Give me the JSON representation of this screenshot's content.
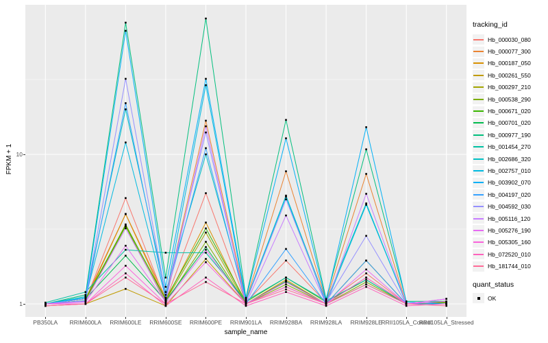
{
  "axis": {
    "y_label": "FPKM + 1",
    "x_label": "sample_name",
    "y_tick_labels": [
      "10",
      "1"
    ]
  },
  "legend": {
    "tracking_title": "tracking_id",
    "quant_title": "quant_status",
    "quant_ok_label": "OK",
    "quant_marker_color": "#000000"
  },
  "style": {
    "panel_bg": "#EBEBEB",
    "grid_color": "#FFFFFF",
    "tick_color": "#333333",
    "tick_text_color": "#4D4D4D",
    "point_color": "#000000"
  },
  "chart_data": {
    "type": "line",
    "title": "",
    "xlabel": "sample_name",
    "ylabel": "FPKM + 1",
    "scale_y": "log10",
    "ylim": [
      0.82,
      99
    ],
    "y_major_ticks": [
      1,
      10
    ],
    "y_minor_gridlines": [
      3.1623,
      31.623
    ],
    "grid": true,
    "legend_title": "tracking_id",
    "legend_position": "right",
    "point_marker": "filled-square",
    "quant_status": {
      "title": "quant_status",
      "value": "OK"
    },
    "categories": [
      "PB350LA",
      "RRIM600LA",
      "RRIM600LE",
      "RRIM600SE",
      "RRIM600PE",
      "RRIM901LA",
      "RRIM928BA",
      "RRIM928LA",
      "RRIM928LE",
      "RRII105LA_Control",
      "RRII105LA_Stressed"
    ],
    "series": [
      {
        "name": "Hb_000030_080",
        "color": "#F8766D",
        "values": [
          1.0,
          1.05,
          5.1,
          1.05,
          5.5,
          1.02,
          1.95,
          1.02,
          1.6,
          1.0,
          1.02
        ]
      },
      {
        "name": "Hb_000077_300",
        "color": "#EA8331",
        "values": [
          1.0,
          1.08,
          4.0,
          1.1,
          16.8,
          1.05,
          7.7,
          1.05,
          7.4,
          1.0,
          1.0
        ]
      },
      {
        "name": "Hb_000187_050",
        "color": "#D89000",
        "values": [
          1.0,
          1.05,
          3.98,
          1.05,
          3.5,
          1.0,
          1.45,
          1.0,
          1.95,
          1.0,
          1.03
        ]
      },
      {
        "name": "Hb_000261_550",
        "color": "#C09B00",
        "values": [
          0.97,
          1.0,
          1.26,
          0.97,
          2.0,
          1.0,
          1.3,
          1.0,
          1.5,
          1.0,
          1.0
        ]
      },
      {
        "name": "Hb_000297_210",
        "color": "#A3A500",
        "values": [
          1.0,
          1.05,
          3.4,
          1.05,
          3.0,
          1.0,
          1.4,
          1.0,
          1.95,
          1.0,
          1.0
        ]
      },
      {
        "name": "Hb_000538_290",
        "color": "#7CAE00",
        "values": [
          1.0,
          1.04,
          3.3,
          1.02,
          2.6,
          1.0,
          1.35,
          1.0,
          1.4,
          1.0,
          1.02
        ]
      },
      {
        "name": "Hb_000671_020",
        "color": "#39B600",
        "values": [
          1.0,
          1.08,
          3.35,
          1.08,
          3.2,
          1.03,
          1.5,
          1.03,
          1.45,
          1.0,
          1.03
        ]
      },
      {
        "name": "Hb_000701_020",
        "color": "#00BB4E",
        "values": [
          1.0,
          1.08,
          2.1,
          1.05,
          2.4,
          1.0,
          1.42,
          1.0,
          1.35,
          1.0,
          1.0
        ]
      },
      {
        "name": "Hb_000977_190",
        "color": "#00BF7D",
        "values": [
          1.0,
          1.15,
          76.0,
          1.5,
          81.0,
          1.1,
          17.0,
          1.08,
          10.8,
          1.04,
          1.04
        ]
      },
      {
        "name": "Hb_001454_270",
        "color": "#00C1A3",
        "values": [
          1.02,
          1.2,
          2.3,
          2.2,
          2.2,
          1.05,
          1.5,
          1.05,
          1.45,
          1.0,
          1.04
        ]
      },
      {
        "name": "Hb_002686_320",
        "color": "#00BFC4",
        "values": [
          1.0,
          1.12,
          20.0,
          1.2,
          10.0,
          1.05,
          5.3,
          1.04,
          4.7,
          1.0,
          1.0
        ]
      },
      {
        "name": "Hb_002757_010",
        "color": "#00BAE0",
        "values": [
          1.0,
          1.1,
          12.0,
          1.1,
          29.0,
          1.04,
          5.2,
          1.0,
          4.6,
          1.0,
          1.0
        ]
      },
      {
        "name": "Hb_003902_070",
        "color": "#00B0F6",
        "values": [
          1.0,
          1.1,
          67.0,
          1.3,
          32.0,
          1.08,
          12.8,
          1.05,
          15.2,
          1.03,
          1.0
        ]
      },
      {
        "name": "Hb_004197_020",
        "color": "#35A2FF",
        "values": [
          1.0,
          1.05,
          22.0,
          1.1,
          11.0,
          1.0,
          2.33,
          1.0,
          1.95,
          1.0,
          1.0
        ]
      },
      {
        "name": "Hb_004592_030",
        "color": "#9590FF",
        "values": [
          1.0,
          1.08,
          32.0,
          1.15,
          14.0,
          1.03,
          5.0,
          1.03,
          2.85,
          1.0,
          1.08
        ]
      },
      {
        "name": "Hb_005116_120",
        "color": "#C77CFF",
        "values": [
          1.0,
          1.04,
          3.2,
          1.04,
          15.4,
          1.0,
          3.9,
          1.0,
          5.45,
          1.0,
          1.08
        ]
      },
      {
        "name": "Hb_005276_190",
        "color": "#E76BF3",
        "values": [
          1.0,
          1.03,
          2.45,
          1.03,
          2.3,
          1.0,
          1.4,
          1.0,
          1.7,
          1.0,
          1.08
        ]
      },
      {
        "name": "Hb_005305_160",
        "color": "#FA62DB",
        "values": [
          1.0,
          1.0,
          1.8,
          1.0,
          1.9,
          1.0,
          1.3,
          1.0,
          1.5,
          1.0,
          1.04
        ]
      },
      {
        "name": "Hb_072520_010",
        "color": "#FF62BC",
        "values": [
          0.97,
          1.0,
          1.6,
          0.97,
          1.5,
          0.97,
          1.2,
          0.97,
          1.3,
          0.97,
          1.0
        ]
      },
      {
        "name": "Hb_181744_010",
        "color": "#FF6A98",
        "values": [
          0.97,
          1.0,
          1.5,
          1.0,
          1.4,
          1.0,
          1.25,
          1.0,
          1.35,
          1.0,
          0.97
        ]
      }
    ]
  }
}
